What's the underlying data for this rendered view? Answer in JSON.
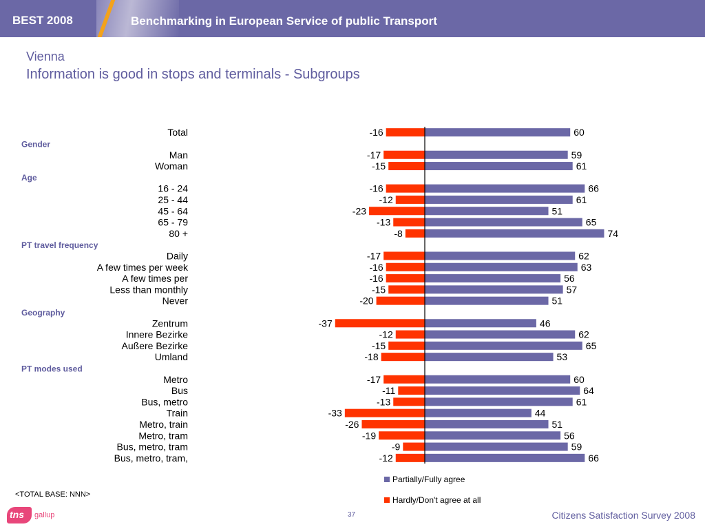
{
  "header": {
    "brand": "BEST 2008",
    "headline": "Benchmarking in European Service of public Transport"
  },
  "title": "Vienna",
  "subtitle": "Information is good in stops and terminals - Subgroups",
  "footer": {
    "base_note": "<TOTAL BASE: NNN>",
    "logo_text": "tns",
    "logo_sub": "gallup",
    "page_number": "37",
    "survey_name": "Citizens Satisfaction Survey 2008"
  },
  "colors": {
    "positive": "#6b68a6",
    "negative": "#ff3300",
    "group_label": "#5f5c9e"
  },
  "chart_data": {
    "type": "bar",
    "orientation": "horizontal-diverging",
    "series": [
      {
        "name": "Partially/Fully agree",
        "color": "#6b68a6"
      },
      {
        "name": "Hardly/Don't agree at all",
        "color": "#ff3300"
      }
    ],
    "rows": [
      {
        "kind": "item",
        "label": "Total",
        "neg": -16,
        "pos": 60
      },
      {
        "kind": "group",
        "label": "Gender"
      },
      {
        "kind": "item",
        "label": "Man",
        "neg": -17,
        "pos": 59
      },
      {
        "kind": "item",
        "label": "Woman",
        "neg": -15,
        "pos": 61
      },
      {
        "kind": "group",
        "label": "Age"
      },
      {
        "kind": "item",
        "label": "16 - 24",
        "neg": -16,
        "pos": 66
      },
      {
        "kind": "item",
        "label": "25 - 44",
        "neg": -12,
        "pos": 61
      },
      {
        "kind": "item",
        "label": "45 - 64",
        "neg": -23,
        "pos": 51
      },
      {
        "kind": "item",
        "label": "65 - 79",
        "neg": -13,
        "pos": 65
      },
      {
        "kind": "item",
        "label": "80 +",
        "neg": -8,
        "pos": 74
      },
      {
        "kind": "group",
        "label": "PT travel frequency"
      },
      {
        "kind": "item",
        "label": "Daily",
        "neg": -17,
        "pos": 62
      },
      {
        "kind": "item",
        "label": "A few times per week",
        "neg": -16,
        "pos": 63
      },
      {
        "kind": "item",
        "label": "A few times per",
        "neg": -16,
        "pos": 56
      },
      {
        "kind": "item",
        "label": "Less than monthly",
        "neg": -15,
        "pos": 57
      },
      {
        "kind": "item",
        "label": "Never",
        "neg": -20,
        "pos": 51
      },
      {
        "kind": "group",
        "label": "Geography"
      },
      {
        "kind": "item",
        "label": "Zentrum",
        "neg": -37,
        "pos": 46
      },
      {
        "kind": "item",
        "label": "Innere Bezirke",
        "neg": -12,
        "pos": 62
      },
      {
        "kind": "item",
        "label": "Außere Bezirke",
        "neg": -15,
        "pos": 65
      },
      {
        "kind": "item",
        "label": "Umland",
        "neg": -18,
        "pos": 53
      },
      {
        "kind": "group",
        "label": "PT modes used"
      },
      {
        "kind": "item",
        "label": "Metro",
        "neg": -17,
        "pos": 60
      },
      {
        "kind": "item",
        "label": "Bus",
        "neg": -11,
        "pos": 64
      },
      {
        "kind": "item",
        "label": "Bus, metro",
        "neg": -13,
        "pos": 61
      },
      {
        "kind": "item",
        "label": "Train",
        "neg": -33,
        "pos": 44
      },
      {
        "kind": "item",
        "label": "Metro, train",
        "neg": -26,
        "pos": 51
      },
      {
        "kind": "item",
        "label": "Metro, tram",
        "neg": -19,
        "pos": 56
      },
      {
        "kind": "item",
        "label": "Bus, metro, tram",
        "neg": -9,
        "pos": 59
      },
      {
        "kind": "item",
        "label": "Bus, metro, tram,",
        "neg": -12,
        "pos": 66
      }
    ],
    "legend_position": "bottom-center"
  }
}
